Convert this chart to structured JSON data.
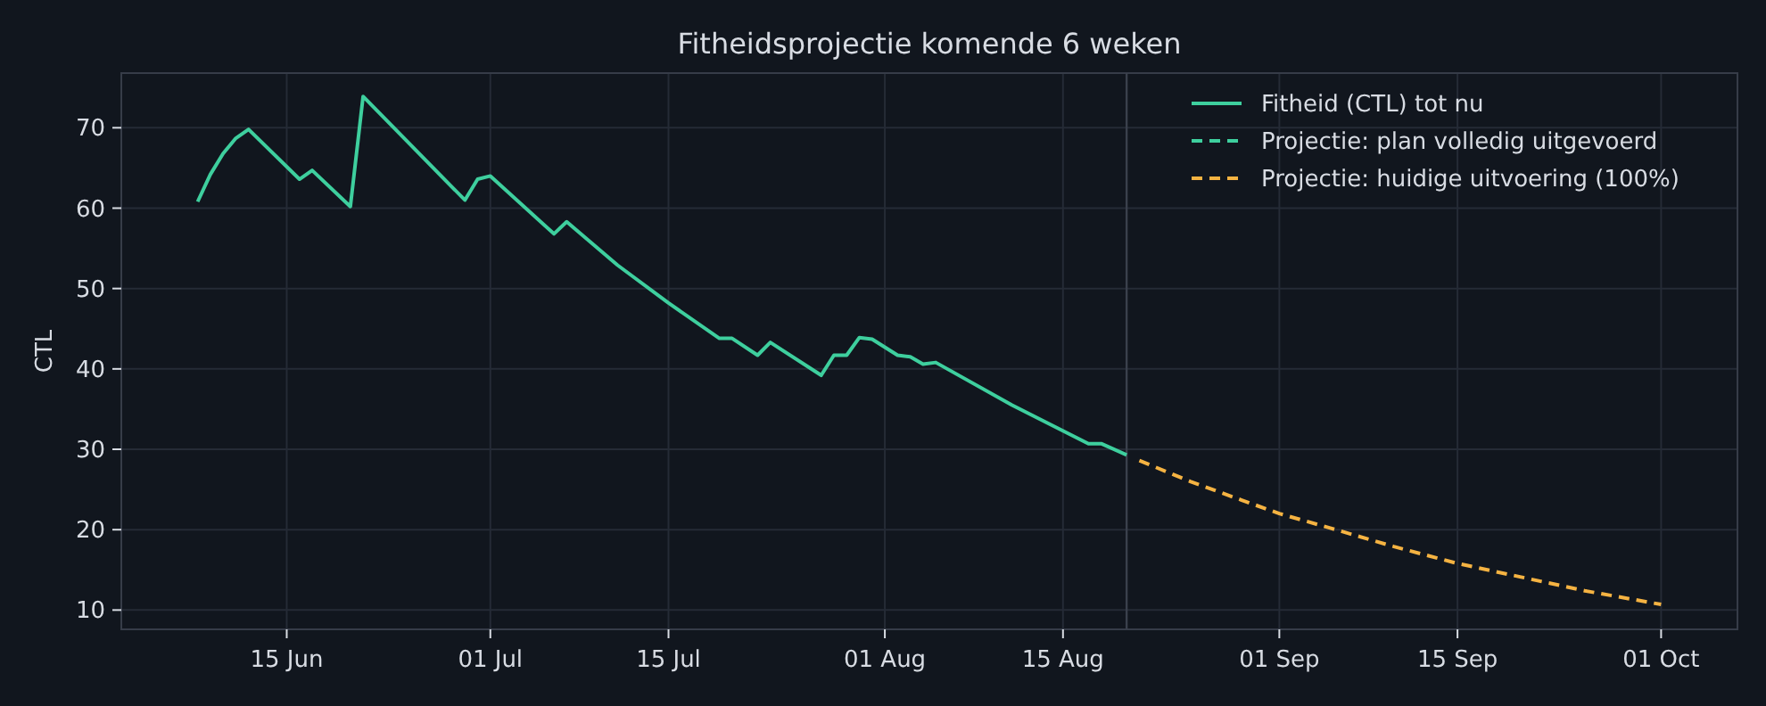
{
  "chart_data": {
    "type": "line",
    "title": "Fitheidsprojectie komende 6 weken",
    "ylabel": "CTL",
    "xlim": [
      "--06-02",
      "--10-07"
    ],
    "xticks": [
      {
        "value": "--06-15",
        "label": "15 Jun"
      },
      {
        "value": "--07-01",
        "label": "01 Jul"
      },
      {
        "value": "--07-15",
        "label": "15 Jul"
      },
      {
        "value": "--08-01",
        "label": "01 Aug"
      },
      {
        "value": "--08-15",
        "label": "15 Aug"
      },
      {
        "value": "--09-01",
        "label": "01 Sep"
      },
      {
        "value": "--09-15",
        "label": "15 Sep"
      },
      {
        "value": "--10-01",
        "label": "01 Oct"
      }
    ],
    "ylim": [
      7.6,
      76.8
    ],
    "yticks": [
      10,
      20,
      30,
      40,
      50,
      60,
      70
    ],
    "grid": true,
    "legend": "top right",
    "marker": "none",
    "ref_lines": [
      {
        "axis": "x",
        "value": "--08-20",
        "color": "#3a404c"
      }
    ],
    "series": [
      {
        "name": "Fitheid (CTL) tot nu",
        "color": "#3ecf9e",
        "line_style": "solid",
        "x": [
          "--06-08",
          "--06-09",
          "--06-10",
          "--06-11",
          "--06-12",
          "--06-16",
          "--06-17",
          "--06-20",
          "--06-21",
          "--06-29",
          "--06-30",
          "--07-01",
          "--07-06",
          "--07-07",
          "--07-11",
          "--07-15",
          "--07-19",
          "--07-20",
          "--07-22",
          "--07-23",
          "--07-27",
          "--07-28",
          "--07-29",
          "--07-30",
          "--07-31",
          "--08-02",
          "--08-03",
          "--08-04",
          "--08-05",
          "--08-11",
          "--08-17",
          "--08-18",
          "--08-20"
        ],
        "values": [
          60.8,
          64.2,
          66.8,
          68.7,
          69.8,
          63.6,
          64.7,
          60.2,
          73.9,
          61.0,
          63.6,
          64.0,
          56.8,
          58.3,
          52.9,
          48.2,
          43.8,
          43.8,
          41.7,
          43.3,
          39.2,
          41.7,
          41.7,
          43.9,
          43.7,
          41.7,
          41.5,
          40.6,
          40.8,
          35.5,
          30.7,
          30.7,
          29.3
        ]
      },
      {
        "name": "Projectie: plan volledig uitgevoerd",
        "color": "#3ecf9e",
        "line_style": "dashed"
      },
      {
        "name": "Projectie: huidige uitvoering (100%)",
        "color": "#f5b342",
        "line_style": "dashed",
        "x": [
          "--08-21",
          "--08-25",
          "--08-29",
          "--09-01",
          "--09-05",
          "--09-10",
          "--09-15",
          "--09-20",
          "--09-25",
          "--10-01"
        ],
        "values": [
          28.6,
          26.0,
          23.7,
          22.0,
          20.2,
          17.9,
          15.8,
          14.1,
          12.4,
          10.7
        ]
      }
    ]
  }
}
